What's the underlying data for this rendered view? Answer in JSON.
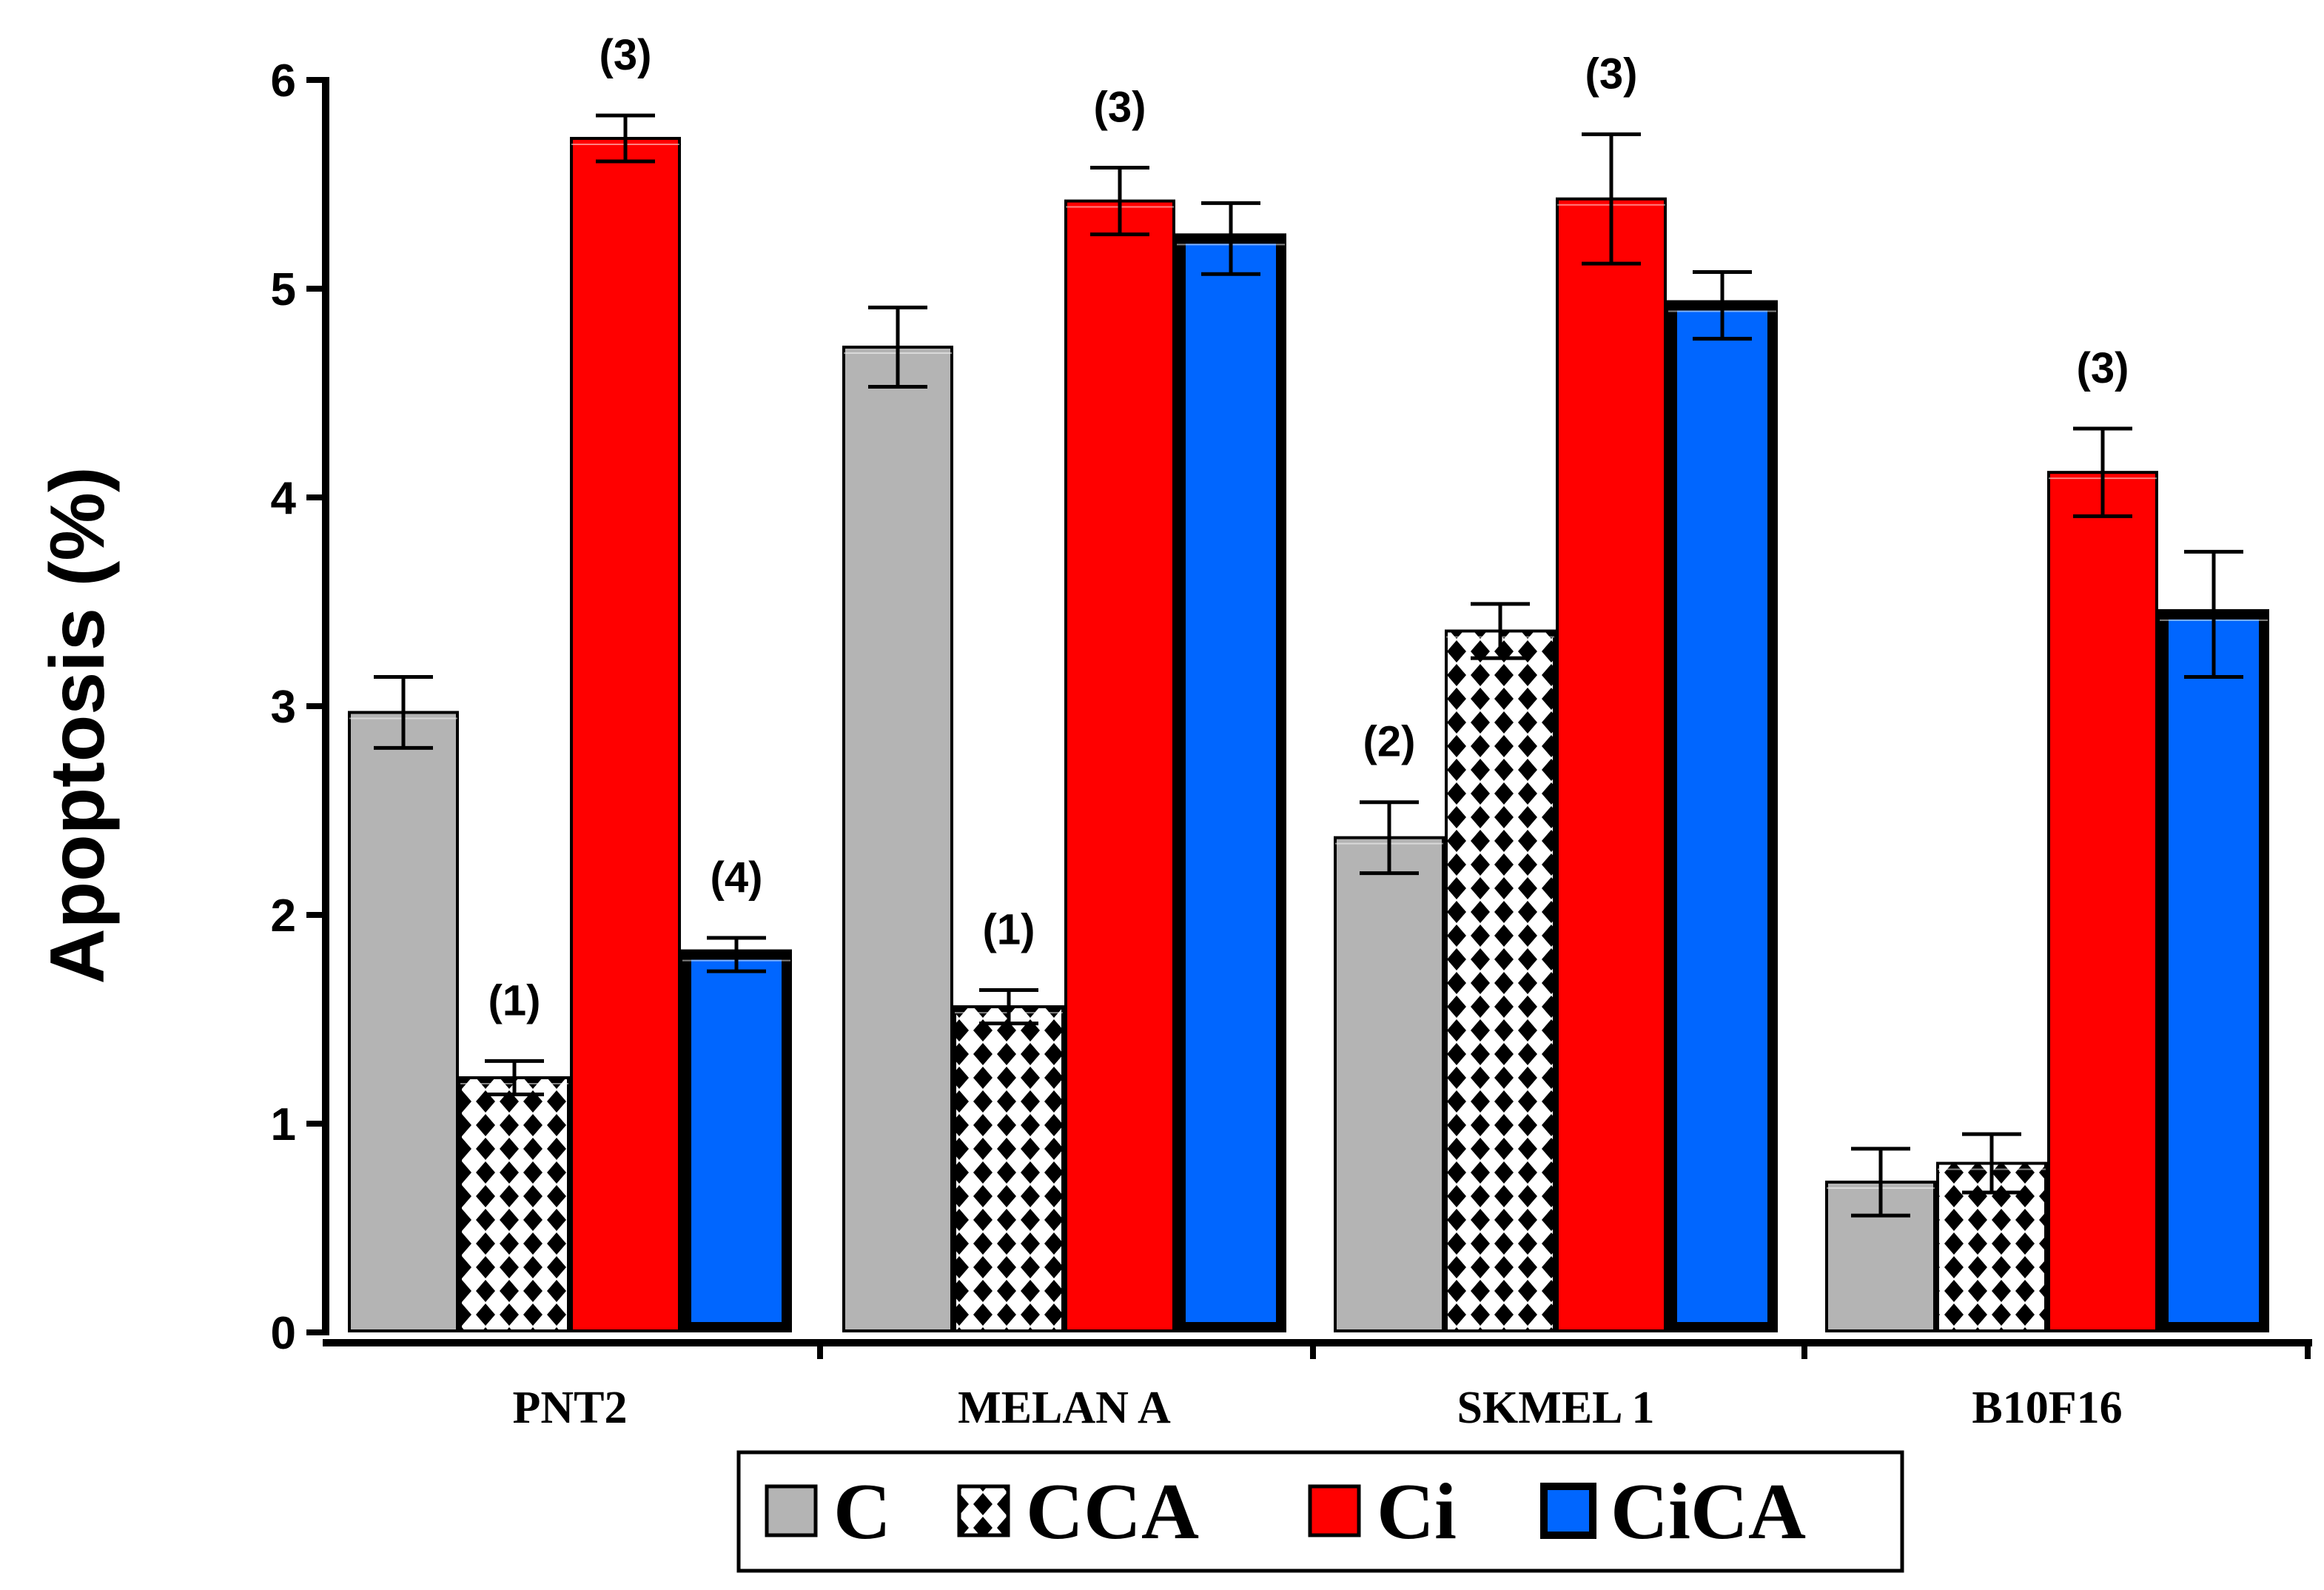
{
  "chart_data": {
    "type": "bar",
    "title": "",
    "xlabel": "",
    "ylabel": "Apoptosis  (%)",
    "ylim": [
      0,
      6
    ],
    "yticks": [
      "0",
      "1",
      "2",
      "3",
      "4",
      "5",
      "6"
    ],
    "categories": [
      "PNT2",
      "MELAN A",
      "SKMEL 1",
      "B10F16"
    ],
    "series": [
      {
        "name": "C",
        "color": "#b4b4b4",
        "pattern": "solid",
        "values": [
          2.97,
          4.72,
          2.37,
          0.72
        ],
        "errors": [
          0.17,
          0.19,
          0.17,
          0.16
        ]
      },
      {
        "name": "CCA",
        "color": "#000000",
        "pattern": "diamond",
        "values": [
          1.22,
          1.56,
          3.36,
          0.81
        ],
        "errors": [
          0.08,
          0.08,
          0.13,
          0.14
        ]
      },
      {
        "name": "Ci",
        "color": "#ff0000",
        "pattern": "solid",
        "values": [
          5.72,
          5.42,
          5.43,
          4.12
        ],
        "errors": [
          0.11,
          0.16,
          0.31,
          0.21
        ]
      },
      {
        "name": "CiCA",
        "color": "#0066ff",
        "pattern": "solid",
        "values": [
          1.81,
          5.24,
          4.92,
          3.44
        ],
        "errors": [
          0.08,
          0.17,
          0.16,
          0.3
        ]
      }
    ],
    "annotations": [
      {
        "category": "PNT2",
        "series": "CCA",
        "text": "(1)"
      },
      {
        "category": "PNT2",
        "series": "Ci",
        "text": "(3)"
      },
      {
        "category": "PNT2",
        "series": "CiCA",
        "text": "(4)"
      },
      {
        "category": "MELAN A",
        "series": "CCA",
        "text": "(1)"
      },
      {
        "category": "MELAN A",
        "series": "Ci",
        "text": "(3)"
      },
      {
        "category": "SKMEL 1",
        "series": "C",
        "text": "(2)"
      },
      {
        "category": "SKMEL 1",
        "series": "Ci",
        "text": "(3)"
      },
      {
        "category": "B10F16",
        "series": "Ci",
        "text": "(3)"
      }
    ],
    "legend": {
      "position": "bottom",
      "entries": [
        "C",
        "CCA",
        "Ci",
        "CiCA"
      ]
    },
    "grid": false
  }
}
